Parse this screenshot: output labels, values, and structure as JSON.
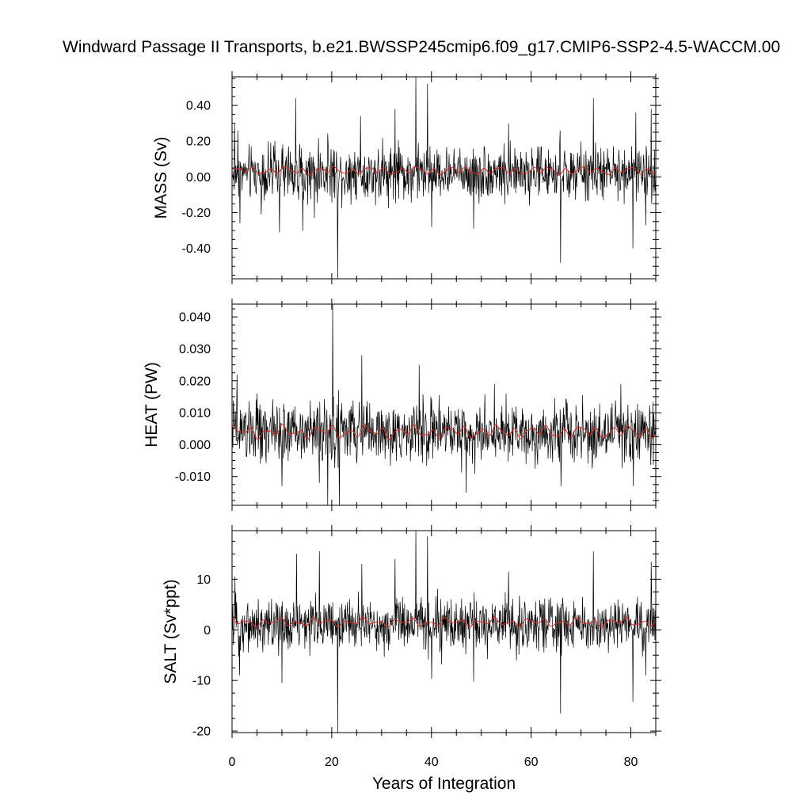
{
  "title": "Windward Passage II Transports, b.e21.BWSSP245cmip6.f09_g17.CMIP6-SSP2-4.5-WACCM.00",
  "colors": {
    "raw_series": "#000000",
    "smoothed_series": "#e8281e",
    "frame": "#000000"
  },
  "chart_data": [
    {
      "type": "line",
      "panel": "top",
      "ylabel": "MASS (Sv)",
      "xlabel": "",
      "xlim": [
        0,
        85
      ],
      "ylim": [
        -0.57,
        0.56
      ],
      "yticks": [
        -0.4,
        -0.2,
        0.0,
        0.2,
        0.4
      ],
      "ytick_labels": [
        "-0.40",
        "-0.20",
        "0.00",
        "0.20",
        "0.40"
      ],
      "raw_baseline": 0.02,
      "raw_noise": 0.075,
      "smooth_level": 0.035,
      "smooth_amp": 0.025,
      "spikes": [
        {
          "x": 0.5,
          "y": 0.3
        },
        {
          "x": 1.2,
          "y": 0.26
        },
        {
          "x": 1.6,
          "y": -0.26
        },
        {
          "x": 5.8,
          "y": -0.21
        },
        {
          "x": 9.5,
          "y": -0.31
        },
        {
          "x": 12.8,
          "y": 0.44
        },
        {
          "x": 14.2,
          "y": -0.3
        },
        {
          "x": 16.5,
          "y": -0.23
        },
        {
          "x": 21.2,
          "y": -0.57
        },
        {
          "x": 25.8,
          "y": 0.34
        },
        {
          "x": 32.7,
          "y": 0.38
        },
        {
          "x": 36.9,
          "y": 0.56
        },
        {
          "x": 39.2,
          "y": 0.52
        },
        {
          "x": 40.0,
          "y": -0.28
        },
        {
          "x": 48.5,
          "y": -0.29
        },
        {
          "x": 55.5,
          "y": 0.3
        },
        {
          "x": 65.9,
          "y": -0.48
        },
        {
          "x": 72.5,
          "y": 0.44
        },
        {
          "x": 80.4,
          "y": -0.4
        },
        {
          "x": 81.0,
          "y": 0.36
        },
        {
          "x": 84.1,
          "y": 0.38
        },
        {
          "x": 83.0,
          "y": -0.27
        }
      ]
    },
    {
      "type": "line",
      "panel": "middle",
      "ylabel": "HEAT (PW)",
      "xlabel": "",
      "xlim": [
        0,
        85
      ],
      "ylim": [
        -0.019,
        0.044
      ],
      "yticks": [
        -0.01,
        0.0,
        0.01,
        0.02,
        0.03,
        0.04
      ],
      "ytick_labels": [
        "-0.010",
        "0.000",
        "0.010",
        "0.020",
        "0.030",
        "0.040"
      ],
      "raw_baseline": 0.004,
      "raw_noise": 0.0048,
      "smooth_level": 0.004,
      "smooth_amp": 0.0022,
      "spikes": [
        {
          "x": 1.0,
          "y": 0.022
        },
        {
          "x": 10.0,
          "y": -0.013
        },
        {
          "x": 17.5,
          "y": -0.012
        },
        {
          "x": 19.2,
          "y": -0.019
        },
        {
          "x": 20.2,
          "y": 0.044
        },
        {
          "x": 21.5,
          "y": -0.019
        },
        {
          "x": 26.0,
          "y": 0.028
        },
        {
          "x": 37.5,
          "y": 0.025
        },
        {
          "x": 47.0,
          "y": -0.015
        },
        {
          "x": 55.0,
          "y": 0.016
        },
        {
          "x": 66.0,
          "y": -0.013
        },
        {
          "x": 78.0,
          "y": 0.019
        },
        {
          "x": 80.5,
          "y": -0.013
        }
      ]
    },
    {
      "type": "line",
      "panel": "bottom",
      "ylabel": "SALT (Sv*ppt)",
      "xlabel": "Years of Integration",
      "xlim": [
        0,
        85
      ],
      "ylim": [
        -20.3,
        19.6
      ],
      "yticks": [
        -20,
        -10,
        0,
        10
      ],
      "ytick_labels": [
        "-20",
        "-10",
        "0",
        "10"
      ],
      "xticks": [
        0,
        20,
        40,
        60,
        80
      ],
      "xtick_labels": [
        "0",
        "20",
        "40",
        "60",
        "80"
      ],
      "raw_baseline": 1.0,
      "raw_noise": 2.6,
      "smooth_level": 1.5,
      "smooth_amp": 0.9,
      "spikes": [
        {
          "x": 0.6,
          "y": 10.5
        },
        {
          "x": 1.5,
          "y": -9.0
        },
        {
          "x": 10.0,
          "y": -10.5
        },
        {
          "x": 12.9,
          "y": 15.0
        },
        {
          "x": 17.5,
          "y": 15.5
        },
        {
          "x": 21.2,
          "y": -20.3
        },
        {
          "x": 26.0,
          "y": 13.0
        },
        {
          "x": 32.7,
          "y": 14.0
        },
        {
          "x": 36.9,
          "y": 19.6
        },
        {
          "x": 39.2,
          "y": 18.5
        },
        {
          "x": 40.0,
          "y": -9.7
        },
        {
          "x": 48.5,
          "y": -10.2
        },
        {
          "x": 55.5,
          "y": 11.5
        },
        {
          "x": 65.9,
          "y": -16.5
        },
        {
          "x": 72.5,
          "y": 15.5
        },
        {
          "x": 80.4,
          "y": -14.2
        },
        {
          "x": 84.1,
          "y": 13.5
        },
        {
          "x": 83.0,
          "y": -9.0
        }
      ]
    }
  ]
}
